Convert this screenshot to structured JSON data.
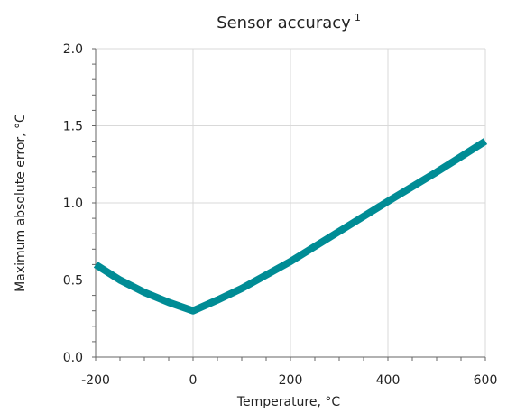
{
  "chart_data": {
    "type": "line",
    "title": "Sensor accuracy",
    "title_superscript": "1",
    "xlabel": "Temperature, °C",
    "ylabel": "Maximum absolute error, °C",
    "xlim": [
      -200,
      600
    ],
    "ylim": [
      0,
      2
    ],
    "x_ticks": [
      -200,
      0,
      200,
      400,
      600
    ],
    "x_tick_labels": [
      "-200",
      "0",
      "200",
      "400",
      "600"
    ],
    "x_minor_step": 50,
    "y_ticks": [
      0,
      0.5,
      1,
      1.5,
      2
    ],
    "y_tick_labels": [
      "0.0",
      "0.5",
      "1.0",
      "1.5",
      "2.0"
    ],
    "y_minor_step": 0.1,
    "grid": true,
    "series": [
      {
        "color": "#008c95",
        "x": [
          -200,
          -150,
          -100,
          -50,
          0,
          50,
          100,
          200,
          300,
          400,
          500,
          600
        ],
        "y": [
          0.6,
          0.5,
          0.42,
          0.355,
          0.3,
          0.37,
          0.445,
          0.62,
          0.815,
          1.01,
          1.2,
          1.4
        ]
      }
    ]
  }
}
